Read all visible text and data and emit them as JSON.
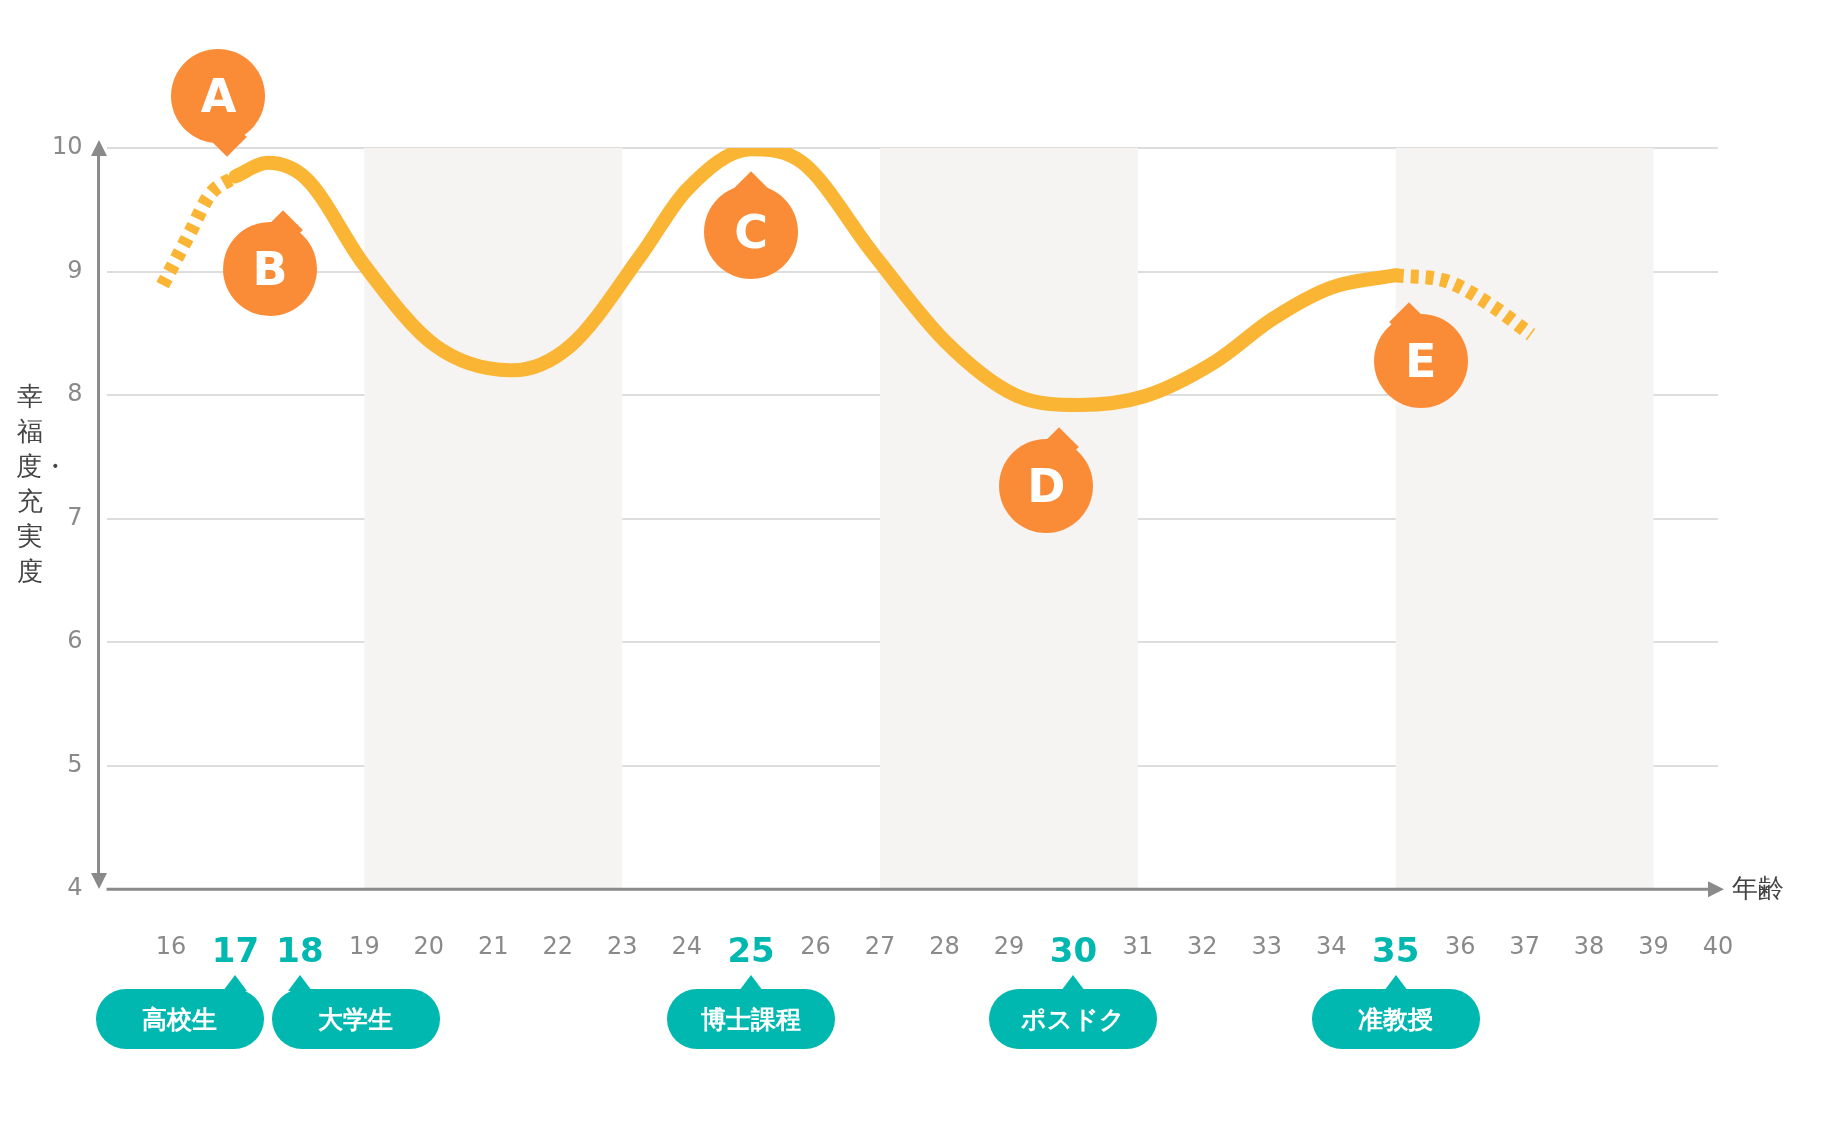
{
  "chart_data": {
    "type": "line",
    "xlabel": "年齢",
    "ylabel": "幸福度・充実度",
    "xlim": [
      15,
      40
    ],
    "xticks": [
      16,
      17,
      18,
      19,
      20,
      21,
      22,
      23,
      24,
      25,
      26,
      27,
      28,
      29,
      30,
      31,
      32,
      33,
      34,
      35,
      36,
      37,
      38,
      39,
      40
    ],
    "ylim": [
      4,
      10
    ],
    "yticks": [
      4,
      5,
      6,
      7,
      8,
      9,
      10
    ],
    "grid": "y",
    "legend": false,
    "marker": "none",
    "line_style": "solid",
    "series": [
      {
        "color": "#fbb535",
        "line_style": "dashed",
        "x": [
          15.87,
          16.3,
          16.6,
          17
        ],
        "values": [
          8.89,
          9.32,
          9.62,
          9.77
        ]
      },
      {
        "color": "#fbb535",
        "x": [
          17,
          17.5,
          18.1,
          19,
          20.1,
          21.3,
          22.2,
          23.3,
          24,
          25,
          25.8,
          26.9,
          28,
          29.1,
          30.1,
          31.1,
          32.2,
          33.1,
          34,
          35
        ],
        "values": [
          9.77,
          9.88,
          9.75,
          9.05,
          8.4,
          8.2,
          8.4,
          9.14,
          9.66,
          9.99,
          9.88,
          9.14,
          8.44,
          8.0,
          7.92,
          7.99,
          8.27,
          8.62,
          8.87,
          8.97
        ]
      },
      {
        "color": "#fbb535",
        "line_style": "dashed",
        "x": [
          35,
          35.8,
          36.5,
          37.1
        ],
        "values": [
          8.97,
          8.92,
          8.72,
          8.49
        ]
      }
    ],
    "bands": [
      {
        "axis": "x",
        "from": 19,
        "to": 23,
        "color": "#f5f4f2"
      },
      {
        "axis": "x",
        "from": 27,
        "to": 31,
        "color": "#f5f4f2"
      },
      {
        "axis": "x",
        "from": 35,
        "to": 39,
        "color": "#f5f4f2"
      }
    ],
    "annotations": [
      {
        "text": "A",
        "x": 17,
        "y": 9.77
      },
      {
        "text": "B",
        "x": 18,
        "y": 9.75
      },
      {
        "text": "C",
        "x": 25,
        "y": 10
      },
      {
        "text": "D",
        "x": 30,
        "y": 7.92
      },
      {
        "text": "E",
        "x": 35,
        "y": 8.97
      },
      "高校生",
      "大学生",
      "博士課程",
      "ポスドク",
      "准教授"
    ]
  }
}
